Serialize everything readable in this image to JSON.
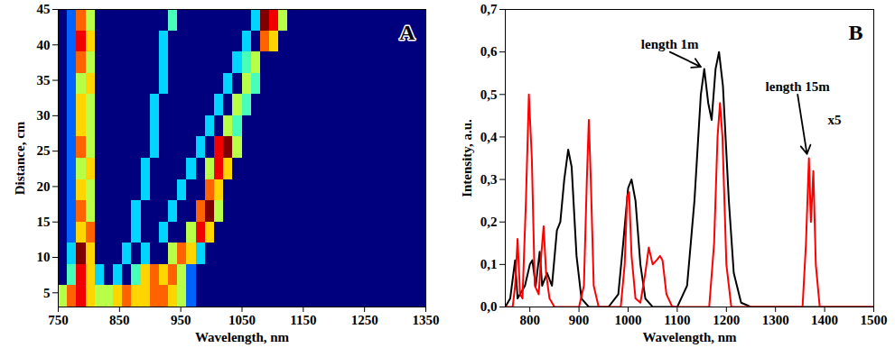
{
  "chart_data": [
    {
      "panel": "A",
      "type": "heatmap",
      "x_label": "Wavelength, nm",
      "y_label": "Distance, cm",
      "xlim": [
        750,
        1350
      ],
      "xticks": [
        750,
        850,
        950,
        1050,
        1150,
        1250,
        1350
      ],
      "ylim": [
        3,
        45
      ],
      "yticks": [
        5,
        10,
        15,
        20,
        25,
        30,
        35,
        40,
        45
      ],
      "heatmap": {
        "x": [
          757.5,
          772.5,
          787.5,
          802.5,
          817.5,
          832.5,
          847.5,
          862.5,
          877.5,
          892.5,
          907.5,
          922.5,
          937.5,
          952.5,
          967.5,
          982.5,
          997.5,
          1012.5,
          1027.5,
          1042.5,
          1057.5,
          1072.5,
          1087.5,
          1102.5,
          1117.5,
          1132.5,
          1147.5,
          1162.5,
          1177.5,
          1192.5,
          1207.5,
          1222.5,
          1237.5,
          1252.5,
          1267.5,
          1282.5,
          1297.5,
          1312.5,
          1327.5,
          1342.5
        ],
        "y": [
          4.5,
          7.5,
          10.5,
          13.5,
          16.5,
          19.5,
          22.5,
          25.5,
          28.5,
          31.5,
          34.5,
          37.5,
          40.5,
          43.5
        ],
        "z": [
          [
            5,
            7,
            8,
            6,
            5,
            5,
            6,
            7,
            6,
            6,
            7,
            7,
            6,
            5,
            2,
            0,
            0,
            0,
            0,
            0,
            0,
            0,
            0,
            0,
            0,
            0,
            0,
            0,
            0,
            0,
            0,
            0,
            0,
            0,
            0,
            0,
            0,
            0,
            0,
            0
          ],
          [
            0,
            4,
            8,
            6,
            3,
            0,
            3,
            0,
            4,
            6,
            7,
            6,
            7,
            5,
            2,
            0,
            0,
            0,
            0,
            0,
            0,
            0,
            0,
            0,
            0,
            0,
            0,
            0,
            0,
            0,
            0,
            0,
            0,
            0,
            0,
            0,
            0,
            0,
            0,
            0
          ],
          [
            0,
            3,
            9,
            6,
            0,
            0,
            0,
            3,
            0,
            3,
            0,
            0,
            5,
            7,
            6,
            3,
            0,
            0,
            0,
            0,
            0,
            0,
            0,
            0,
            0,
            0,
            0,
            0,
            0,
            0,
            0,
            0,
            0,
            0,
            0,
            0,
            0,
            0,
            0,
            0
          ],
          [
            0,
            2,
            6,
            7,
            0,
            0,
            0,
            0,
            3,
            0,
            0,
            3,
            0,
            0,
            5,
            8,
            6,
            0,
            0,
            0,
            0,
            0,
            0,
            0,
            0,
            0,
            0,
            0,
            0,
            0,
            0,
            0,
            0,
            0,
            0,
            0,
            0,
            0,
            0,
            0
          ],
          [
            0,
            2,
            7,
            5,
            0,
            0,
            0,
            0,
            3,
            0,
            0,
            0,
            3,
            0,
            0,
            7,
            9,
            5,
            0,
            0,
            0,
            0,
            0,
            0,
            0,
            0,
            0,
            0,
            0,
            0,
            0,
            0,
            0,
            0,
            0,
            0,
            0,
            0,
            0,
            0
          ],
          [
            0,
            2,
            6,
            5,
            0,
            0,
            0,
            0,
            0,
            3,
            0,
            0,
            0,
            3,
            0,
            0,
            7,
            6,
            0,
            0,
            0,
            0,
            0,
            0,
            0,
            0,
            0,
            0,
            0,
            0,
            0,
            0,
            0,
            0,
            0,
            0,
            0,
            0,
            0,
            0
          ],
          [
            0,
            2,
            5,
            6,
            0,
            0,
            0,
            0,
            0,
            3,
            0,
            0,
            0,
            0,
            3,
            0,
            5,
            8,
            6,
            0,
            0,
            0,
            0,
            0,
            0,
            0,
            0,
            0,
            0,
            0,
            0,
            0,
            0,
            0,
            0,
            0,
            0,
            0,
            0,
            0
          ],
          [
            0,
            2,
            7,
            5,
            0,
            0,
            0,
            0,
            0,
            0,
            3,
            0,
            0,
            0,
            0,
            3,
            0,
            8,
            9,
            5,
            0,
            0,
            0,
            0,
            0,
            0,
            0,
            0,
            0,
            0,
            0,
            0,
            0,
            0,
            0,
            0,
            0,
            0,
            0,
            0
          ],
          [
            0,
            2,
            6,
            5,
            0,
            0,
            0,
            0,
            0,
            0,
            3,
            0,
            0,
            0,
            0,
            0,
            3,
            0,
            5,
            4,
            0,
            0,
            0,
            0,
            0,
            0,
            0,
            0,
            0,
            0,
            0,
            0,
            0,
            0,
            0,
            0,
            0,
            0,
            0,
            0
          ],
          [
            0,
            2,
            6,
            5,
            0,
            0,
            0,
            0,
            0,
            0,
            3,
            0,
            0,
            0,
            0,
            0,
            0,
            3,
            0,
            5,
            4,
            0,
            0,
            0,
            0,
            0,
            0,
            0,
            0,
            0,
            0,
            0,
            0,
            0,
            0,
            0,
            0,
            0,
            0,
            0
          ],
          [
            0,
            2,
            5,
            6,
            0,
            0,
            0,
            0,
            0,
            0,
            0,
            3,
            0,
            0,
            0,
            0,
            0,
            0,
            3,
            0,
            5,
            4,
            0,
            0,
            0,
            0,
            0,
            0,
            0,
            0,
            0,
            0,
            0,
            0,
            0,
            0,
            0,
            0,
            0,
            0
          ],
          [
            0,
            2,
            7,
            5,
            0,
            0,
            0,
            0,
            0,
            0,
            0,
            3,
            0,
            0,
            0,
            0,
            0,
            0,
            0,
            3,
            4,
            5,
            0,
            0,
            0,
            0,
            0,
            0,
            0,
            0,
            0,
            0,
            0,
            0,
            0,
            0,
            0,
            0,
            0,
            0
          ],
          [
            0,
            2,
            8,
            6,
            0,
            0,
            0,
            0,
            0,
            0,
            0,
            3,
            0,
            0,
            0,
            0,
            0,
            0,
            0,
            0,
            3,
            0,
            7,
            6,
            0,
            0,
            0,
            0,
            0,
            0,
            0,
            0,
            0,
            0,
            0,
            0,
            0,
            0,
            0,
            0
          ],
          [
            0,
            2,
            7,
            5,
            0,
            0,
            0,
            0,
            0,
            0,
            0,
            0,
            4,
            0,
            0,
            0,
            0,
            0,
            0,
            0,
            0,
            3,
            9,
            8,
            5,
            0,
            0,
            0,
            0,
            0,
            0,
            0,
            0,
            0,
            0,
            0,
            0,
            0,
            0,
            0
          ]
        ]
      }
    },
    {
      "panel": "B",
      "type": "line",
      "x_label": "Wavelength, nm",
      "y_label": "Intensity, a.u.",
      "xlim": [
        750,
        1500
      ],
      "xticks": [
        800,
        900,
        1000,
        1100,
        1200,
        1300,
        1400,
        1500
      ],
      "ylim": [
        0,
        0.7
      ],
      "yticks": [
        {
          "value": 0,
          "label": "0,0"
        },
        {
          "value": 0.1,
          "label": "0,1"
        },
        {
          "value": 0.2,
          "label": "0,2"
        },
        {
          "value": 0.3,
          "label": "0,3"
        },
        {
          "value": 0.4,
          "label": "0,4"
        },
        {
          "value": 0.5,
          "label": "0,5"
        },
        {
          "value": 0.6,
          "label": "0,6"
        },
        {
          "value": 0.7,
          "label": "0,7"
        }
      ],
      "series": [
        {
          "name": "length 1m",
          "color": "#000000",
          "x": [
            750,
            760,
            770,
            775,
            790,
            800,
            805,
            812,
            820,
            825,
            835,
            845,
            855,
            862,
            870,
            878,
            885,
            895,
            905,
            920,
            960,
            980,
            990,
            1000,
            1007,
            1015,
            1025,
            1035,
            1050,
            1100,
            1120,
            1135,
            1148,
            1155,
            1163,
            1170,
            1178,
            1185,
            1193,
            1205,
            1215,
            1230,
            1250,
            1500
          ],
          "values": [
            0,
            0.02,
            0.11,
            0.02,
            0.05,
            0.1,
            0.11,
            0.05,
            0.13,
            0.05,
            0.08,
            0.05,
            0.18,
            0.2,
            0.3,
            0.37,
            0.33,
            0.12,
            0.02,
            0,
            0,
            0.03,
            0.15,
            0.28,
            0.3,
            0.25,
            0.1,
            0.02,
            0,
            0,
            0.05,
            0.25,
            0.5,
            0.56,
            0.48,
            0.44,
            0.56,
            0.6,
            0.52,
            0.25,
            0.08,
            0.01,
            0,
            0
          ],
          "annotation": {
            "x": 1085,
            "y": 0.6,
            "arrow_to": [
              1148,
              0.565
            ]
          }
        },
        {
          "name": "length 15m",
          "color": "#ff0000",
          "x": [
            750,
            765,
            770,
            775,
            780,
            785,
            792,
            798,
            804,
            810,
            818,
            823,
            828,
            833,
            840,
            850,
            900,
            910,
            916,
            920,
            924,
            930,
            940,
            985,
            993,
            998,
            1002,
            1007,
            1015,
            1025,
            1035,
            1042,
            1050,
            1058,
            1065,
            1070,
            1078,
            1090,
            1165,
            1175,
            1182,
            1187,
            1192,
            1200,
            1210,
            1355,
            1362,
            1368,
            1372,
            1377,
            1382,
            1390,
            1500
          ],
          "values": [
            0,
            0,
            0.05,
            0.16,
            0.03,
            0.02,
            0.25,
            0.5,
            0.35,
            0.05,
            0.03,
            0.12,
            0.19,
            0.08,
            0.02,
            0,
            0,
            0.05,
            0.3,
            0.44,
            0.3,
            0.05,
            0,
            0,
            0.1,
            0.26,
            0.27,
            0.12,
            0.02,
            0.01,
            0.08,
            0.14,
            0.1,
            0.11,
            0.12,
            0.11,
            0.03,
            0,
            0,
            0.15,
            0.4,
            0.48,
            0.4,
            0.1,
            0,
            0,
            0.15,
            0.35,
            0.2,
            0.32,
            0.1,
            0,
            0
          ],
          "annotation": {
            "x": 1345,
            "y": 0.5,
            "arrow_to": [
              1364,
              0.36
            ]
          }
        }
      ],
      "annotations": [
        {
          "text": "x5",
          "x": 1420,
          "y": 0.44
        }
      ]
    }
  ]
}
